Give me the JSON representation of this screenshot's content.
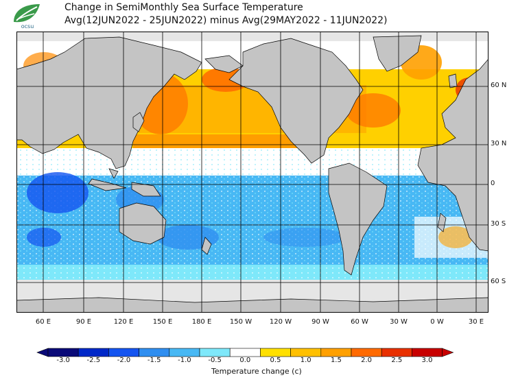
{
  "header": {
    "logo_text": "ocsu",
    "title_line1": "Change in SemiMonthly Sea Surface Temperature",
    "title_line2": "Avg(12JUN2022 - 25JUN2022) minus Avg(29MAY2022 - 11JUN2022)"
  },
  "map": {
    "lat_labels": [
      "60 N",
      "30 N",
      "0",
      "30 S",
      "60 S"
    ],
    "lon_labels": [
      "60 E",
      "90 E",
      "120 E",
      "150 E",
      "180 E",
      "150 W",
      "120 W",
      "90 W",
      "60 W",
      "30 W",
      "0 W",
      "30 E"
    ],
    "colors": {
      "land": "#c4c4c4",
      "ice": "#e6e6e6",
      "grid": "#000000"
    }
  },
  "colorbar": {
    "tick_labels": [
      "-3.0",
      "-2.5",
      "-2.0",
      "-1.5",
      "-1.0",
      "-0.5",
      "0.0",
      "0.5",
      "1.0",
      "1.5",
      "2.0",
      "2.5",
      "3.0"
    ],
    "colors": [
      "#0a0a78",
      "#0028c8",
      "#1454f0",
      "#2f8ef0",
      "#48b8f4",
      "#7ee8fa",
      "#ffffff",
      "#ffe000",
      "#ffc000",
      "#ffa000",
      "#ff6a00",
      "#e83000",
      "#c80000"
    ],
    "label": "Temperature change  (c)"
  }
}
